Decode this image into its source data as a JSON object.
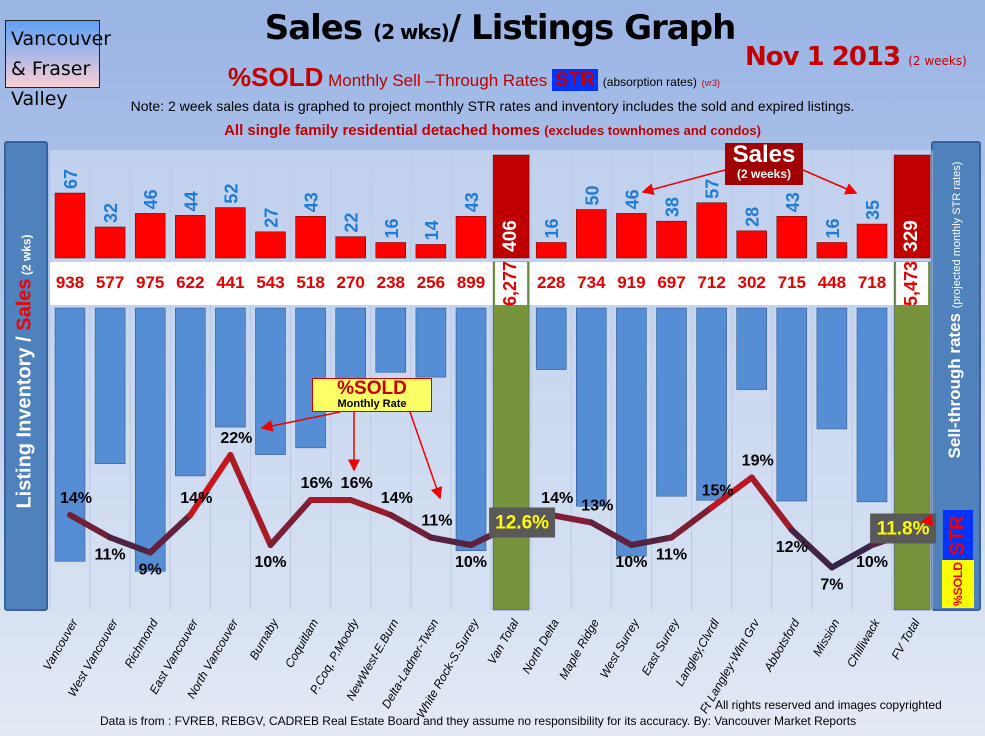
{
  "header": {
    "region": "Vancouver & Fraser Valley",
    "title_main": "Sales",
    "title_small": "(2 wks)",
    "title_rest": "/ Listings Graph",
    "date": "Nov 1 2013",
    "date_small": "(2 weeks)",
    "subtitle_sold": "%SOLD",
    "subtitle_text": "Monthly Sell –Through Rates",
    "subtitle_str": "STR",
    "subtitle_abs": "(absorption rates)",
    "subtitle_ver": "(vr3)",
    "note": "Note: 2 week sales data is graphed to project monthly STR rates and inventory includes the sold and expired listings.",
    "scope": "All single family residential detached homes",
    "scope_small": "(excludes townhomes and condos)"
  },
  "side": {
    "left_a": "Listing Inventory / ",
    "left_b": "Sales",
    "left_c": " (2 wks)",
    "right_a": "Sell-through rates",
    "right_b": "(projected monthly STR rates)",
    "str": "STR",
    "sold": "%SOLD"
  },
  "annotations": {
    "sales": "Sales",
    "sales_small": "(2 weeks)",
    "sold": "%SOLD",
    "sold_small": "Monthly Rate"
  },
  "footer": {
    "rights": "All rights reserved and  images copyrighted",
    "source": "Data is from : FVREB, REBGV, CADREB Real Estate Board and they assume no responsibility for its accuracy. By: Vancouver Market Reports"
  },
  "colors": {
    "sales": "#ff0000",
    "listings": "#558ed5",
    "total": "#77933c",
    "total_sales": "#c00000",
    "sales_label": "#1f7bd6"
  },
  "chart_data": {
    "type": "bar",
    "title": "Sales (2 wks)/ Listings Graph",
    "categories": [
      "Vancouver",
      "West Vancouver",
      "Richmond",
      "East Vancouver",
      "North Vancouver",
      "Burnaby",
      "Coquitlam",
      "P.Coq, P.Moody",
      "NewWest-E.Burn",
      "Delta-Ladner-Twsn",
      "White Rock-S.Surrey",
      "Van Total",
      "North Delta",
      "Maple Ridge",
      "West Surrey",
      "East Surrey",
      "Langley,Clvrdl",
      "Ft Langley-Wlnt Grv",
      "Abbotsford",
      "Mission",
      "Chilliwack",
      "FV Total"
    ],
    "totals": [
      false,
      false,
      false,
      false,
      false,
      false,
      false,
      false,
      false,
      false,
      false,
      true,
      false,
      false,
      false,
      false,
      false,
      false,
      false,
      false,
      false,
      true
    ],
    "series": [
      {
        "name": "Sales (2 weeks)",
        "values": [
          67,
          32,
          46,
          44,
          52,
          27,
          43,
          22,
          16,
          14,
          43,
          406,
          16,
          50,
          46,
          38,
          57,
          28,
          43,
          16,
          35,
          329
        ]
      },
      {
        "name": "Listing Inventory",
        "values": [
          938,
          577,
          975,
          622,
          441,
          543,
          518,
          270,
          238,
          256,
          899,
          6277,
          228,
          734,
          919,
          697,
          712,
          302,
          715,
          448,
          718,
          5473
        ],
        "labels": [
          "938",
          "577",
          "975",
          "622",
          "441",
          "543",
          "518",
          "270",
          "238",
          "256",
          "899",
          "6,277",
          "228",
          "734",
          "919",
          "697",
          "712",
          "302",
          "715",
          "448",
          "718",
          "5,473"
        ]
      },
      {
        "name": "%SOLD Monthly Rate",
        "type": "line",
        "values": [
          14,
          11,
          9,
          14,
          22,
          10,
          16,
          16,
          14,
          11,
          10,
          12.6,
          14,
          13,
          10,
          11,
          15,
          19,
          12,
          7,
          10,
          11.8
        ],
        "labels": [
          "14%",
          "11%",
          "9%",
          "14%",
          "22%",
          "10%",
          "16%",
          "16%",
          "14%",
          "11%",
          "10%",
          "12.6%",
          "14%",
          "13%",
          "10%",
          "11%",
          "15%",
          "19%",
          "12%",
          "7%",
          "10%",
          "11.8%"
        ]
      }
    ],
    "ylabel": "Listing Inventory / Sales (2 wks)",
    "y2label": "Sell-through rates (projected monthly STR rates)",
    "grid": true
  }
}
